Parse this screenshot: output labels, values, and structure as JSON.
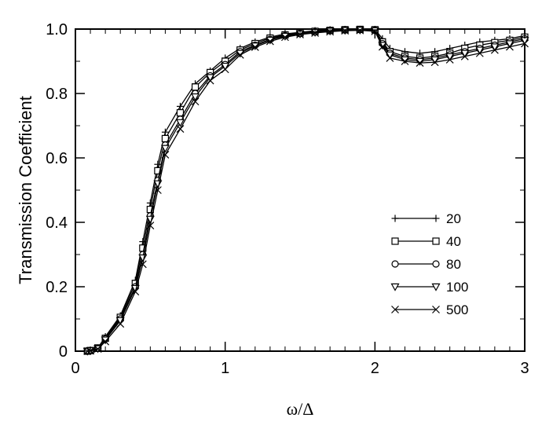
{
  "chart_data": {
    "type": "line",
    "xlabel": "ω/Δ",
    "ylabel": "Transmission Coefficient",
    "xlim": [
      0,
      3
    ],
    "ylim": [
      0,
      1.0
    ],
    "xticks": [
      0,
      1,
      2,
      3
    ],
    "xtick_labels": [
      "0",
      "1",
      "2",
      "3"
    ],
    "yticks": [
      0,
      0.2,
      0.4,
      0.6,
      0.8,
      1.0
    ],
    "ytick_labels": [
      "0",
      "0.2",
      "0.4",
      "0.6",
      "0.8",
      "1.0"
    ],
    "grid": false,
    "legend_position": "right",
    "x": [
      0.08,
      0.1,
      0.15,
      0.2,
      0.3,
      0.4,
      0.45,
      0.5,
      0.55,
      0.6,
      0.7,
      0.8,
      0.9,
      1.0,
      1.1,
      1.2,
      1.3,
      1.4,
      1.5,
      1.6,
      1.7,
      1.8,
      1.9,
      2.0,
      2.05,
      2.1,
      2.2,
      2.3,
      2.4,
      2.5,
      2.6,
      2.7,
      2.8,
      2.9,
      3.0
    ],
    "series": [
      {
        "name": "20",
        "marker": "plus",
        "values": [
          0.0,
          0.002,
          0.01,
          0.045,
          0.11,
          0.22,
          0.34,
          0.46,
          0.58,
          0.68,
          0.76,
          0.83,
          0.87,
          0.91,
          0.94,
          0.96,
          0.975,
          0.985,
          0.99,
          0.995,
          0.998,
          0.999,
          0.999,
          0.999,
          0.97,
          0.94,
          0.93,
          0.925,
          0.93,
          0.94,
          0.95,
          0.96,
          0.965,
          0.97,
          0.98
        ]
      },
      {
        "name": "40",
        "marker": "square",
        "values": [
          0.0,
          0.002,
          0.01,
          0.04,
          0.105,
          0.21,
          0.32,
          0.44,
          0.56,
          0.66,
          0.74,
          0.82,
          0.865,
          0.9,
          0.935,
          0.955,
          0.972,
          0.982,
          0.988,
          0.993,
          0.996,
          0.998,
          0.999,
          0.998,
          0.96,
          0.93,
          0.915,
          0.91,
          0.915,
          0.925,
          0.94,
          0.95,
          0.958,
          0.965,
          0.975
        ]
      },
      {
        "name": "80",
        "marker": "circle",
        "values": [
          0.0,
          0.002,
          0.009,
          0.038,
          0.1,
          0.2,
          0.3,
          0.42,
          0.53,
          0.64,
          0.72,
          0.8,
          0.855,
          0.89,
          0.93,
          0.95,
          0.968,
          0.98,
          0.986,
          0.991,
          0.995,
          0.997,
          0.998,
          0.996,
          0.955,
          0.925,
          0.91,
          0.905,
          0.91,
          0.92,
          0.93,
          0.94,
          0.95,
          0.96,
          0.97
        ]
      },
      {
        "name": "100",
        "marker": "triangle-down",
        "values": [
          0.0,
          0.002,
          0.008,
          0.035,
          0.095,
          0.195,
          0.29,
          0.41,
          0.52,
          0.63,
          0.71,
          0.79,
          0.85,
          0.885,
          0.925,
          0.948,
          0.966,
          0.978,
          0.985,
          0.99,
          0.994,
          0.996,
          0.997,
          0.995,
          0.95,
          0.92,
          0.905,
          0.9,
          0.905,
          0.915,
          0.925,
          0.935,
          0.945,
          0.955,
          0.965
        ]
      },
      {
        "name": "500",
        "marker": "cross",
        "values": [
          0.0,
          0.001,
          0.007,
          0.03,
          0.085,
          0.185,
          0.27,
          0.39,
          0.5,
          0.61,
          0.69,
          0.775,
          0.84,
          0.875,
          0.92,
          0.944,
          0.962,
          0.975,
          0.983,
          0.988,
          0.992,
          0.995,
          0.996,
          0.993,
          0.945,
          0.91,
          0.9,
          0.895,
          0.897,
          0.905,
          0.915,
          0.925,
          0.935,
          0.945,
          0.955
        ]
      }
    ]
  }
}
